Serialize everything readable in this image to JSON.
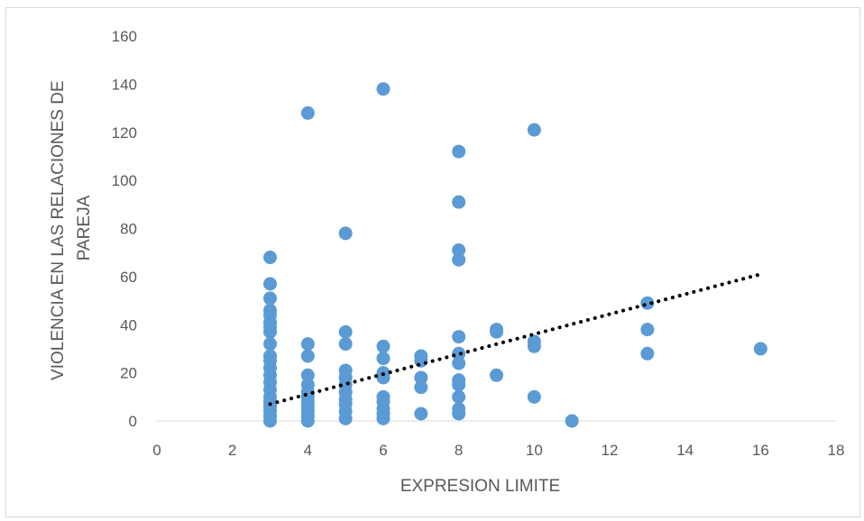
{
  "chart_data": {
    "type": "scatter",
    "title": "",
    "xlabel": "EXPRESION LIMITE",
    "ylabel_lines": [
      "VIOLENCIA EN LAS RELACIONES DE",
      "PAREJA"
    ],
    "xlim": [
      0,
      18
    ],
    "ylim": [
      0,
      160
    ],
    "x_ticks": [
      "0",
      "2",
      "4",
      "6",
      "8",
      "10",
      "12",
      "14",
      "16",
      "18"
    ],
    "y_ticks": [
      "0",
      "20",
      "40",
      "60",
      "80",
      "100",
      "120",
      "140",
      "160"
    ],
    "grid": false,
    "legend": "none",
    "marker_color": "#5b9bd5",
    "trendline": {
      "type": "linear",
      "style": "dotted",
      "color": "#000000",
      "x_range": [
        3,
        16
      ],
      "y_at_start": 7,
      "y_at_end": 61
    },
    "points": [
      [
        3,
        68
      ],
      [
        3,
        57
      ],
      [
        3,
        51
      ],
      [
        3,
        46
      ],
      [
        3,
        44
      ],
      [
        3,
        41
      ],
      [
        3,
        39
      ],
      [
        3,
        37
      ],
      [
        3,
        32
      ],
      [
        3,
        27
      ],
      [
        3,
        25
      ],
      [
        3,
        22
      ],
      [
        3,
        19
      ],
      [
        3,
        16
      ],
      [
        3,
        13
      ],
      [
        3,
        10
      ],
      [
        3,
        8
      ],
      [
        3,
        6
      ],
      [
        3,
        4
      ],
      [
        3,
        2
      ],
      [
        3,
        0
      ],
      [
        4,
        128
      ],
      [
        4,
        32
      ],
      [
        4,
        27
      ],
      [
        4,
        19
      ],
      [
        4,
        15
      ],
      [
        4,
        12
      ],
      [
        4,
        10
      ],
      [
        4,
        8
      ],
      [
        4,
        6
      ],
      [
        4,
        4
      ],
      [
        4,
        2
      ],
      [
        4,
        0
      ],
      [
        5,
        78
      ],
      [
        5,
        37
      ],
      [
        5,
        32
      ],
      [
        5,
        21
      ],
      [
        5,
        18
      ],
      [
        5,
        15
      ],
      [
        5,
        12
      ],
      [
        5,
        9
      ],
      [
        5,
        7
      ],
      [
        5,
        4
      ],
      [
        5,
        1
      ],
      [
        6,
        138
      ],
      [
        6,
        31
      ],
      [
        6,
        26
      ],
      [
        6,
        20
      ],
      [
        6,
        18
      ],
      [
        6,
        10
      ],
      [
        6,
        8
      ],
      [
        6,
        5
      ],
      [
        6,
        3
      ],
      [
        6,
        1
      ],
      [
        7,
        27
      ],
      [
        7,
        25
      ],
      [
        7,
        18
      ],
      [
        7,
        14
      ],
      [
        7,
        3
      ],
      [
        8,
        112
      ],
      [
        8,
        91
      ],
      [
        8,
        71
      ],
      [
        8,
        67
      ],
      [
        8,
        35
      ],
      [
        8,
        28
      ],
      [
        8,
        24
      ],
      [
        8,
        17
      ],
      [
        8,
        15
      ],
      [
        8,
        10
      ],
      [
        8,
        5
      ],
      [
        8,
        3
      ],
      [
        9,
        38
      ],
      [
        9,
        37
      ],
      [
        9,
        19
      ],
      [
        10,
        121
      ],
      [
        10,
        33
      ],
      [
        10,
        31
      ],
      [
        10,
        10
      ],
      [
        11,
        0
      ],
      [
        13,
        49
      ],
      [
        13,
        38
      ],
      [
        13,
        28
      ],
      [
        16,
        30
      ]
    ]
  }
}
